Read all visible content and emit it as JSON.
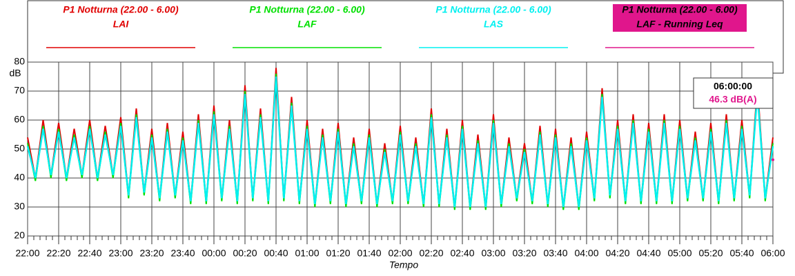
{
  "chart_data": {
    "type": "line",
    "measurement": "P1 Notturna (22.00 - 6.00)",
    "y_label": "dB",
    "x_label": "Tempo",
    "ylim": [
      20,
      80
    ],
    "yticks": [
      20,
      30,
      40,
      50,
      60,
      70,
      80
    ],
    "xlim": [
      "22:00",
      "06:00"
    ],
    "xticks": [
      "22:00",
      "22:20",
      "22:40",
      "23:00",
      "23:20",
      "23:40",
      "00:00",
      "00:20",
      "00:40",
      "01:00",
      "01:20",
      "01:40",
      "02:00",
      "02:20",
      "02:40",
      "03:00",
      "03:20",
      "03:40",
      "04:00",
      "04:20",
      "04:40",
      "05:00",
      "05:20",
      "05:40",
      "06:00"
    ],
    "grid": true,
    "cursor": {
      "time": "06:00:00",
      "label": "46.3 dB(A)"
    },
    "x": [
      "22:00",
      "22:05",
      "22:10",
      "22:15",
      "22:20",
      "22:25",
      "22:30",
      "22:35",
      "22:40",
      "22:45",
      "22:50",
      "22:55",
      "23:00",
      "23:05",
      "23:10",
      "23:15",
      "23:20",
      "23:25",
      "23:30",
      "23:35",
      "23:40",
      "23:45",
      "23:50",
      "23:55",
      "00:00",
      "00:05",
      "00:10",
      "00:15",
      "00:20",
      "00:25",
      "00:30",
      "00:35",
      "00:40",
      "00:45",
      "00:50",
      "00:55",
      "01:00",
      "01:05",
      "01:10",
      "01:15",
      "01:20",
      "01:25",
      "01:30",
      "01:35",
      "01:40",
      "01:45",
      "01:50",
      "01:55",
      "02:00",
      "02:05",
      "02:10",
      "02:15",
      "02:20",
      "02:25",
      "02:30",
      "02:35",
      "02:40",
      "02:45",
      "02:50",
      "02:55",
      "03:00",
      "03:05",
      "03:10",
      "03:15",
      "03:20",
      "03:25",
      "03:30",
      "03:35",
      "03:40",
      "03:45",
      "03:50",
      "03:55",
      "04:00",
      "04:05",
      "04:10",
      "04:15",
      "04:20",
      "04:25",
      "04:30",
      "04:35",
      "04:40",
      "04:45",
      "04:50",
      "04:55",
      "05:00",
      "05:05",
      "05:10",
      "05:15",
      "05:20",
      "05:25",
      "05:30",
      "05:35",
      "05:40",
      "05:45",
      "05:50",
      "05:55",
      "06:00"
    ],
    "series": [
      {
        "name": "LAI",
        "color": "#e00000",
        "values": [
          54,
          40,
          60,
          41,
          59,
          40,
          57,
          41,
          60,
          40,
          58,
          41,
          61,
          34,
          64,
          35,
          57,
          33,
          59,
          34,
          56,
          32,
          62,
          32,
          65,
          33,
          60,
          32,
          72,
          33,
          64,
          32,
          78,
          33,
          68,
          32,
          60,
          31,
          57,
          32,
          59,
          31,
          54,
          32,
          57,
          31,
          52,
          32,
          58,
          32,
          54,
          31,
          64,
          31,
          57,
          30,
          60,
          30,
          55,
          30,
          62,
          31,
          54,
          33,
          52,
          32,
          58,
          31,
          57,
          30,
          54,
          30,
          56,
          33,
          71,
          34,
          60,
          32,
          62,
          32,
          59,
          32,
          62,
          32,
          60,
          33,
          56,
          33,
          59,
          32,
          62,
          33,
          60,
          34,
          72,
          33,
          54
        ]
      },
      {
        "name": "LAF",
        "color": "#00e000",
        "values": [
          52,
          39,
          58,
          40,
          57,
          39,
          55,
          40,
          58,
          39,
          56,
          40,
          59,
          33,
          62,
          34,
          55,
          32,
          57,
          33,
          54,
          31,
          60,
          31,
          63,
          32,
          58,
          31,
          70,
          32,
          62,
          31,
          76,
          32,
          66,
          31,
          58,
          30,
          55,
          31,
          57,
          30,
          52,
          31,
          55,
          30,
          50,
          31,
          56,
          31,
          52,
          30,
          62,
          30,
          55,
          29,
          58,
          29,
          53,
          29,
          60,
          30,
          52,
          32,
          50,
          31,
          56,
          30,
          55,
          29,
          52,
          29,
          54,
          32,
          69,
          33,
          58,
          31,
          60,
          31,
          57,
          31,
          60,
          31,
          58,
          32,
          54,
          32,
          57,
          31,
          60,
          32,
          58,
          33,
          70,
          32,
          52
        ]
      },
      {
        "name": "LAS",
        "color": "#00f0f0",
        "values": [
          51,
          40,
          57,
          41,
          56,
          40,
          54,
          41,
          57,
          40,
          55,
          41,
          58,
          34,
          61,
          35,
          54,
          33,
          56,
          34,
          53,
          32,
          59,
          32,
          62,
          33,
          57,
          32,
          69,
          33,
          61,
          32,
          75,
          33,
          65,
          32,
          57,
          31,
          54,
          32,
          56,
          31,
          51,
          32,
          54,
          31,
          49,
          32,
          55,
          32,
          51,
          31,
          61,
          31,
          54,
          30,
          57,
          30,
          52,
          30,
          59,
          31,
          51,
          33,
          49,
          32,
          55,
          31,
          54,
          30,
          51,
          30,
          53,
          33,
          68,
          34,
          57,
          32,
          59,
          32,
          56,
          32,
          59,
          32,
          57,
          33,
          53,
          33,
          56,
          32,
          59,
          33,
          57,
          34,
          69,
          33,
          51
        ]
      },
      {
        "name": "LAF - Running Leq",
        "color": "#e0168c",
        "values": [
          null,
          null,
          null,
          null,
          null,
          null,
          null,
          null,
          null,
          null,
          null,
          null,
          null,
          null,
          null,
          null,
          null,
          null,
          null,
          null,
          null,
          null,
          null,
          null,
          null,
          null,
          null,
          null,
          null,
          null,
          null,
          null,
          null,
          null,
          null,
          null,
          null,
          null,
          null,
          null,
          null,
          null,
          null,
          null,
          null,
          null,
          null,
          null,
          null,
          null,
          null,
          null,
          null,
          null,
          null,
          null,
          null,
          null,
          null,
          null,
          null,
          null,
          null,
          null,
          null,
          null,
          null,
          null,
          null,
          null,
          null,
          null,
          null,
          null,
          null,
          null,
          null,
          null,
          null,
          null,
          null,
          null,
          null,
          null,
          null,
          null,
          null,
          null,
          null,
          null,
          null,
          null,
          null,
          null,
          null,
          null,
          46.3
        ]
      }
    ]
  }
}
